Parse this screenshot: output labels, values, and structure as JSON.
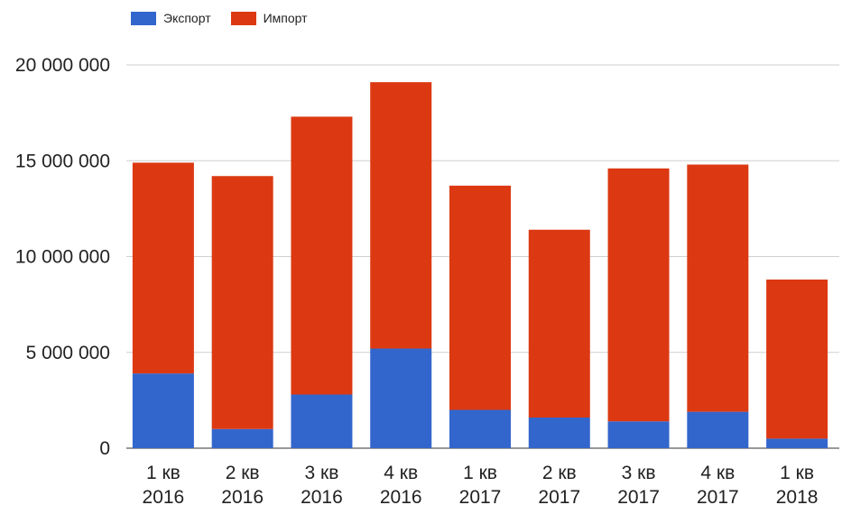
{
  "chart_data": {
    "type": "bar",
    "stacked": true,
    "categories": [
      [
        "1 кв",
        "2016"
      ],
      [
        "2 кв",
        "2016"
      ],
      [
        "3 кв",
        "2016"
      ],
      [
        "4 кв",
        "2016"
      ],
      [
        "1 кв",
        "2017"
      ],
      [
        "2 кв",
        "2017"
      ],
      [
        "3 кв",
        "2017"
      ],
      [
        "4 кв",
        "2017"
      ],
      [
        "1 кв",
        "2018"
      ]
    ],
    "series": [
      {
        "name": "Экспорт",
        "color": "#3366cc",
        "values": [
          3900000,
          1000000,
          2800000,
          5200000,
          2000000,
          1600000,
          1400000,
          1900000,
          500000
        ]
      },
      {
        "name": "Импорт",
        "color": "#dc3912",
        "values": [
          11000000,
          13200000,
          14500000,
          13900000,
          11700000,
          9800000,
          13200000,
          12900000,
          8300000
        ]
      }
    ],
    "yticks": [
      "0",
      "5 000 000",
      "10 000 000",
      "15 000 000",
      "20 000 000"
    ],
    "ytick_values": [
      0,
      5000000,
      10000000,
      15000000,
      20000000
    ],
    "ylim": [
      0,
      20000000
    ],
    "grid": true,
    "legend_position": "top-left"
  }
}
